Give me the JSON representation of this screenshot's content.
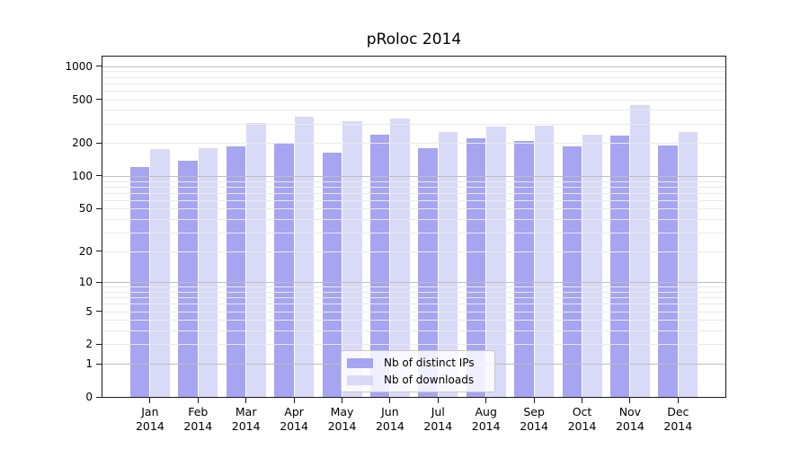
{
  "chart": {
    "title": "pRoloc 2014"
  },
  "chart_data": {
    "type": "bar",
    "title": "pRoloc 2014",
    "yscale": "log1p",
    "ylim": [
      0,
      1220
    ],
    "ytick_values": [
      0,
      1,
      2,
      5,
      10,
      20,
      50,
      100,
      200,
      500,
      1000
    ],
    "ytick_labels": [
      "0",
      "1",
      "2",
      "5",
      "10",
      "20",
      "50",
      "100",
      "200",
      "500",
      "1000"
    ],
    "grid": true,
    "xlabel": "",
    "ylabel": "",
    "months": [
      "Jan",
      "Feb",
      "Mar",
      "Apr",
      "May",
      "Jun",
      "Jul",
      "Aug",
      "Sep",
      "Oct",
      "Nov",
      "Dec"
    ],
    "year": "2014",
    "categories": [
      "Jan 2014",
      "Feb 2014",
      "Mar 2014",
      "Apr 2014",
      "May 2014",
      "Jun 2014",
      "Jul 2014",
      "Aug 2014",
      "Sep 2014",
      "Oct 2014",
      "Nov 2014",
      "Dec 2014"
    ],
    "series": [
      {
        "name": "Nb of distinct IPs",
        "color": "#a5a5f2",
        "values": [
          121,
          137,
          185,
          200,
          163,
          240,
          180,
          222,
          210,
          187,
          234,
          190
        ]
      },
      {
        "name": "Nb of downloads",
        "color": "#d9d9f8",
        "values": [
          176,
          180,
          305,
          345,
          315,
          333,
          252,
          280,
          290,
          237,
          440,
          250
        ]
      }
    ],
    "legend_position": "lower center",
    "colors": {
      "minor_grid": "#eaeaea",
      "major_grid": "#bebebe",
      "axis": "#1a1a1a",
      "background": "#ffffff"
    }
  }
}
